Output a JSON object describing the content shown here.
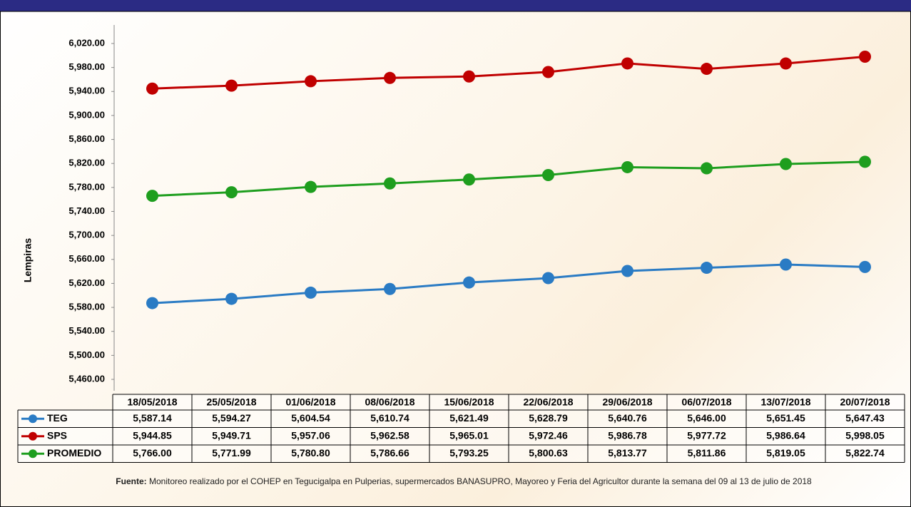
{
  "chart_data": {
    "type": "line",
    "y_label": "Lempiras",
    "categories": [
      "18/05/2018",
      "25/05/2018",
      "01/06/2018",
      "08/06/2018",
      "15/06/2018",
      "22/06/2018",
      "29/06/2018",
      "06/07/2018",
      "13/07/2018",
      "20/07/2018"
    ],
    "series": [
      {
        "name": "TEG",
        "color": "#2a7bc4",
        "values": [
          5587.14,
          5594.27,
          5604.54,
          5610.74,
          5621.49,
          5628.79,
          5640.76,
          5646.0,
          5651.45,
          5647.43
        ],
        "value_labels": [
          "5,587.14",
          "5,594.27",
          "5,604.54",
          "5,610.74",
          "5,621.49",
          "5,628.79",
          "5,640.76",
          "5,646.00",
          "5,651.45",
          "5,647.43"
        ]
      },
      {
        "name": "SPS",
        "color": "#c00000",
        "values": [
          5944.85,
          5949.71,
          5957.06,
          5962.58,
          5965.01,
          5972.46,
          5986.78,
          5977.72,
          5986.64,
          5998.05
        ],
        "value_labels": [
          "5,944.85",
          "5,949.71",
          "5,957.06",
          "5,962.58",
          "5,965.01",
          "5,972.46",
          "5,986.78",
          "5,977.72",
          "5,986.64",
          "5,998.05"
        ]
      },
      {
        "name": "PROMEDIO",
        "color": "#1e9e1e",
        "values": [
          5766.0,
          5771.99,
          5780.8,
          5786.66,
          5793.25,
          5800.63,
          5813.77,
          5811.86,
          5819.05,
          5822.74
        ],
        "value_labels": [
          "5,766.00",
          "5,771.99",
          "5,780.80",
          "5,786.66",
          "5,793.25",
          "5,800.63",
          "5,813.77",
          "5,811.86",
          "5,819.05",
          "5,822.74"
        ]
      }
    ],
    "ylim": [
      5460,
      6020
    ],
    "yticks": [
      {
        "value": 5460,
        "label": "5,460.00"
      },
      {
        "value": 5500,
        "label": "5,500.00"
      },
      {
        "value": 5540,
        "label": "5,540.00"
      },
      {
        "value": 5580,
        "label": "5,580.00"
      },
      {
        "value": 5620,
        "label": "5,620.00"
      },
      {
        "value": 5660,
        "label": "5,660.00"
      },
      {
        "value": 5700,
        "label": "5,700.00"
      },
      {
        "value": 5740,
        "label": "5,740.00"
      },
      {
        "value": 5780,
        "label": "5,780.00"
      },
      {
        "value": 5820,
        "label": "5,820.00"
      },
      {
        "value": 5860,
        "label": "5,860.00"
      },
      {
        "value": 5900,
        "label": "5,900.00"
      },
      {
        "value": 5940,
        "label": "5,940.00"
      },
      {
        "value": 5980,
        "label": "5,980.00"
      },
      {
        "value": 6020,
        "label": "6,020.00"
      }
    ],
    "grid": false,
    "source_label": "Fuente:",
    "source_text": "Monitoreo realizado por el COHEP en Tegucigalpa en Pulperias, supermercados BANASUPRO, Mayoreo y Feria del Agricultor durante la semana del 09 al 13 de julio de 2018"
  }
}
